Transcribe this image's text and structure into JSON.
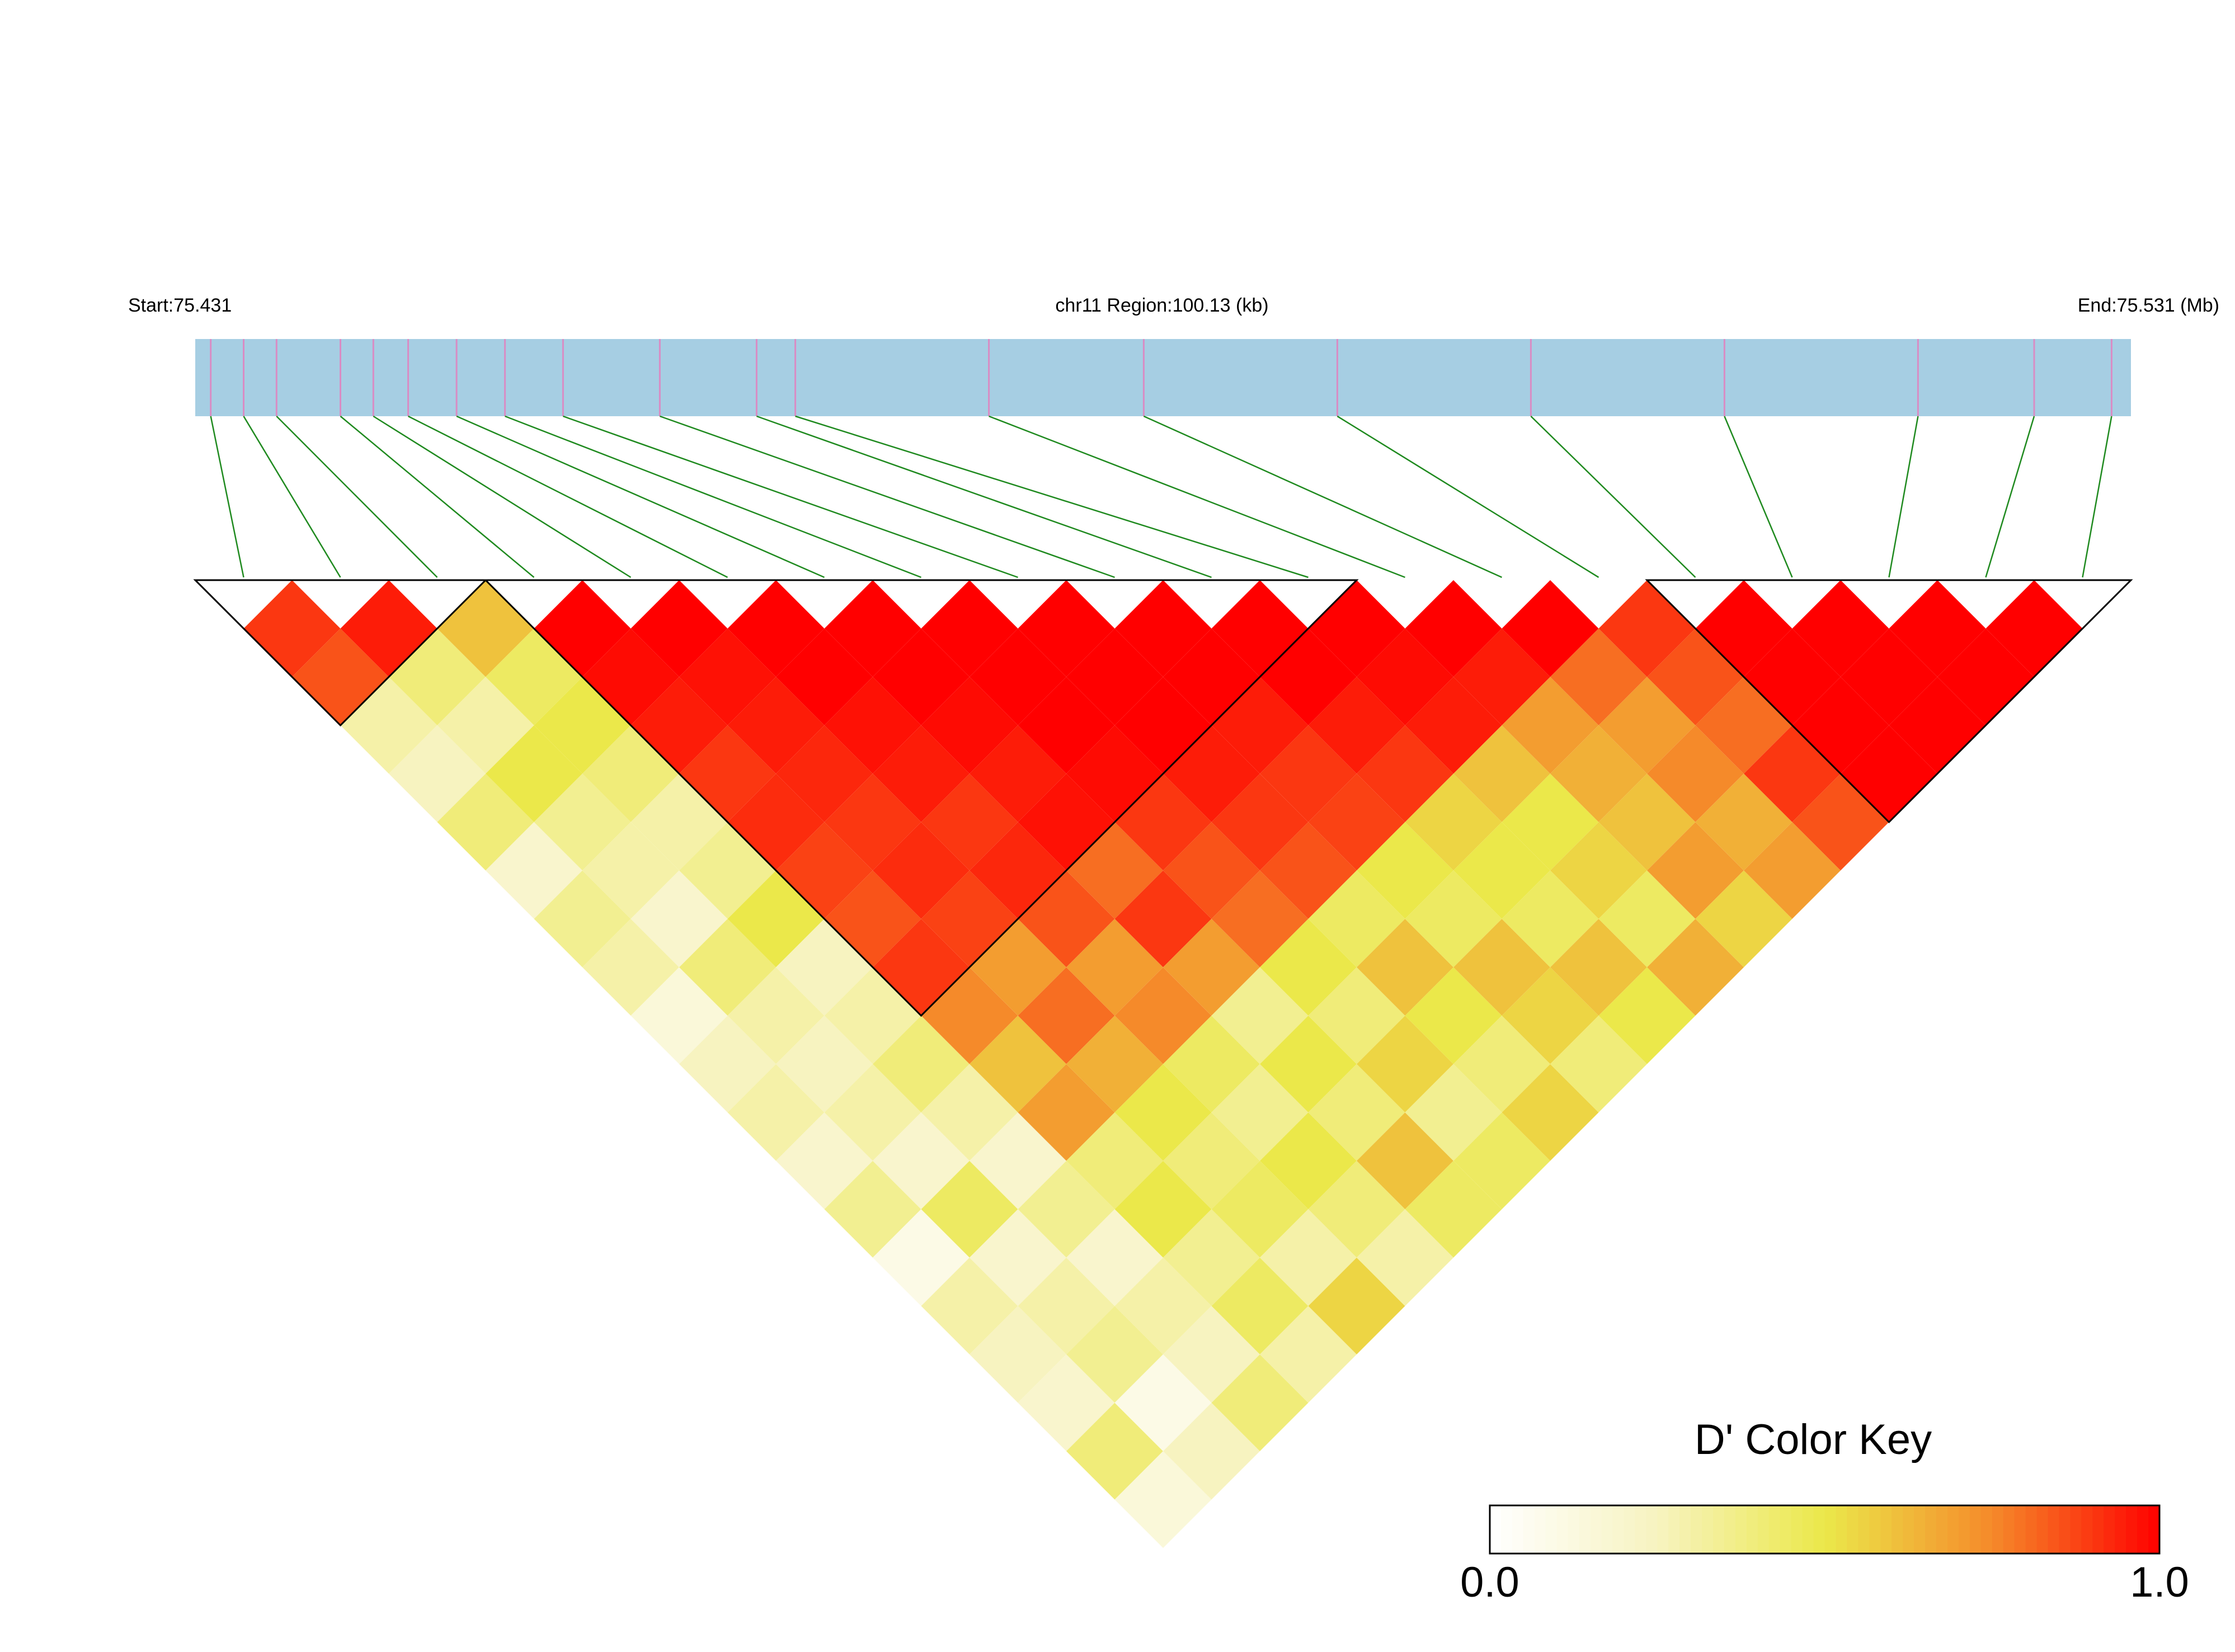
{
  "chart_data": {
    "type": "ld_heatmap",
    "start_label": "Start:75.431",
    "region_label": "chr11 Region:100.13 (kb)",
    "end_label": "End:75.531 (Mb)",
    "xlim": [
      75.431,
      75.531
    ],
    "positions": [
      75.4318,
      75.4335,
      75.4352,
      75.4385,
      75.4402,
      75.442,
      75.4445,
      75.447,
      75.45,
      75.455,
      75.46,
      75.462,
      75.472,
      75.48,
      75.49,
      75.5,
      75.51,
      75.52,
      75.526,
      75.53
    ],
    "track_color": "#a6cee3",
    "snp_color": "#d98cc4",
    "link_color": "#1f8a1f",
    "block_color": "#000000",
    "ld": [
      [
        0.9,
        0.85,
        0.3,
        0.25,
        0.4,
        0.2,
        0.35,
        0.3,
        0.15,
        0.25,
        0.3,
        0.2,
        0.35,
        0.1,
        0.3,
        0.25,
        0.2,
        0.4,
        0.15
      ],
      [
        0.95,
        0.4,
        0.3,
        0.5,
        0.35,
        0.3,
        0.2,
        0.4,
        0.3,
        0.25,
        0.3,
        0.2,
        0.45,
        0.2,
        0.3,
        0.35,
        0.1,
        0.25
      ],
      [
        0.6,
        0.45,
        0.5,
        0.4,
        0.3,
        0.35,
        0.5,
        0.25,
        0.3,
        0.4,
        0.3,
        0.2,
        0.35,
        0.2,
        0.3,
        0.25,
        0.4
      ],
      [
        1,
        0.98,
        0.95,
        0.9,
        0.92,
        0.88,
        0.85,
        0.9,
        0.75,
        0.6,
        0.7,
        0.4,
        0.5,
        0.35,
        0.45,
        0.3
      ],
      [
        1,
        0.97,
        0.95,
        0.93,
        0.9,
        0.92,
        0.88,
        0.7,
        0.8,
        0.65,
        0.5,
        0.4,
        0.45,
        0.3,
        0.55
      ],
      [
        1,
        1,
        0.97,
        0.95,
        0.9,
        0.93,
        0.85,
        0.7,
        0.75,
        0.45,
        0.35,
        0.5,
        0.4,
        0.3
      ],
      [
        1,
        1,
        0.98,
        0.95,
        0.97,
        0.8,
        0.9,
        0.7,
        0.35,
        0.5,
        0.4,
        0.6,
        0.45
      ],
      [
        1,
        1,
        1,
        0.98,
        0.9,
        0.85,
        0.8,
        0.5,
        0.4,
        0.55,
        0.35,
        0.45
      ],
      [
        1,
        1,
        1,
        0.95,
        0.9,
        0.85,
        0.45,
        0.6,
        0.5,
        0.4,
        0.55
      ],
      [
        1,
        1,
        0.95,
        0.9,
        0.88,
        0.5,
        0.45,
        0.6,
        0.55,
        0.4
      ],
      [
        1,
        1,
        0.95,
        0.9,
        0.55,
        0.5,
        0.45,
        0.6,
        0.5
      ],
      [
        1,
        0.98,
        0.95,
        0.6,
        0.5,
        0.55,
        0.45,
        0.65
      ],
      [
        1,
        0.95,
        0.7,
        0.65,
        0.6,
        0.7,
        0.55
      ],
      [
        1,
        0.8,
        0.7,
        0.75,
        0.65,
        0.7
      ],
      [
        0.9,
        0.85,
        0.8,
        0.9,
        0.85
      ],
      [
        1,
        1,
        1,
        1
      ],
      [
        1,
        1,
        1
      ],
      [
        1,
        1
      ],
      [
        1
      ]
    ],
    "blocks": [
      [
        0,
        2
      ],
      [
        3,
        11
      ],
      [
        15,
        19
      ]
    ],
    "colorscale": [
      "#ffffff",
      "#f7f3c0",
      "#ebe84a",
      "#f58a2a",
      "#ff0000"
    ],
    "key": {
      "title": "D' Color Key",
      "lim": [
        0,
        1
      ],
      "ticks": [
        {
          "value": 0,
          "label": "0.0"
        },
        {
          "value": 1,
          "label": "1.0"
        }
      ]
    }
  }
}
